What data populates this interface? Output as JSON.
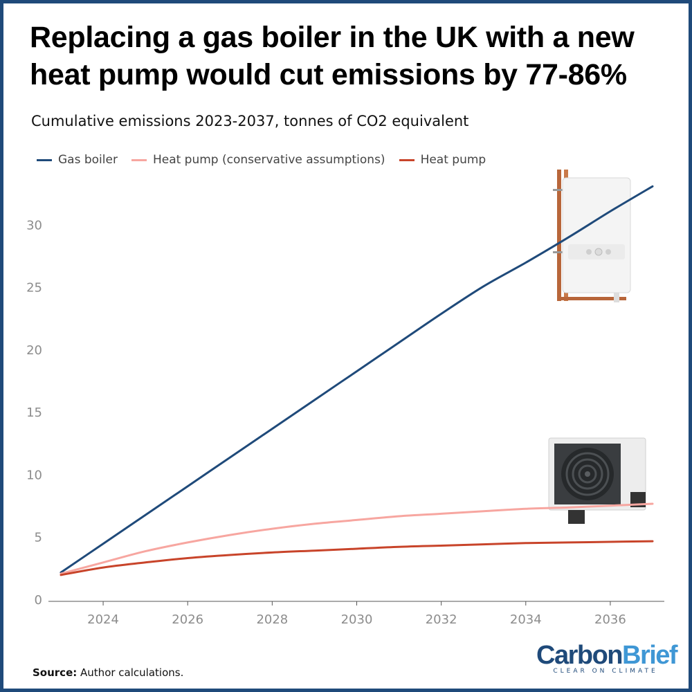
{
  "header": {
    "title": "Replacing a gas boiler in the UK with a new heat pump would cut emissions by 77-86%",
    "subtitle": "Cumulative emissions 2023-2037, tonnes of CO2 equivalent"
  },
  "footer": {
    "source_label": "Source:",
    "source_text": "Author calculations.",
    "logo_part1": "Carbon",
    "logo_part2": "Brief",
    "logo_tagline": "CLEAR ON CLIMATE"
  },
  "icons": {
    "boiler": "gas-boiler-image",
    "heat_pump": "heat-pump-unit-image"
  },
  "chart_data": {
    "type": "line",
    "title": "Replacing a gas boiler in the UK with a new heat pump would cut emissions by 77-86%",
    "subtitle": "Cumulative emissions 2023-2037, tonnes of CO2 equivalent",
    "xlabel": "",
    "ylabel": "",
    "xlim": [
      2023,
      2037
    ],
    "ylim": [
      0,
      35
    ],
    "x_ticks": [
      2024,
      2026,
      2028,
      2030,
      2032,
      2034,
      2036
    ],
    "y_ticks": [
      0,
      5,
      10,
      15,
      20,
      25,
      30
    ],
    "grid": false,
    "legend_position": "top-left",
    "x": [
      2023,
      2024,
      2025,
      2026,
      2027,
      2028,
      2029,
      2030,
      2031,
      2032,
      2033,
      2034,
      2035,
      2036,
      2037
    ],
    "series": [
      {
        "name": "Gas boiler",
        "color": "#1f4a7a",
        "values": [
          2.2,
          4.5,
          6.8,
          9.1,
          11.4,
          13.7,
          16.0,
          18.3,
          20.6,
          22.9,
          25.1,
          27.0,
          29.0,
          31.1,
          33.1
        ]
      },
      {
        "name": "Heat pump (conservative assumptions)",
        "color": "#f7a6a0",
        "values": [
          2.1,
          3.0,
          3.9,
          4.6,
          5.2,
          5.7,
          6.1,
          6.4,
          6.7,
          6.9,
          7.1,
          7.3,
          7.4,
          7.55,
          7.7
        ]
      },
      {
        "name": "Heat pump",
        "color": "#c8442a",
        "values": [
          2.0,
          2.6,
          3.0,
          3.35,
          3.6,
          3.8,
          3.95,
          4.1,
          4.25,
          4.35,
          4.45,
          4.55,
          4.6,
          4.65,
          4.7
        ]
      }
    ]
  }
}
